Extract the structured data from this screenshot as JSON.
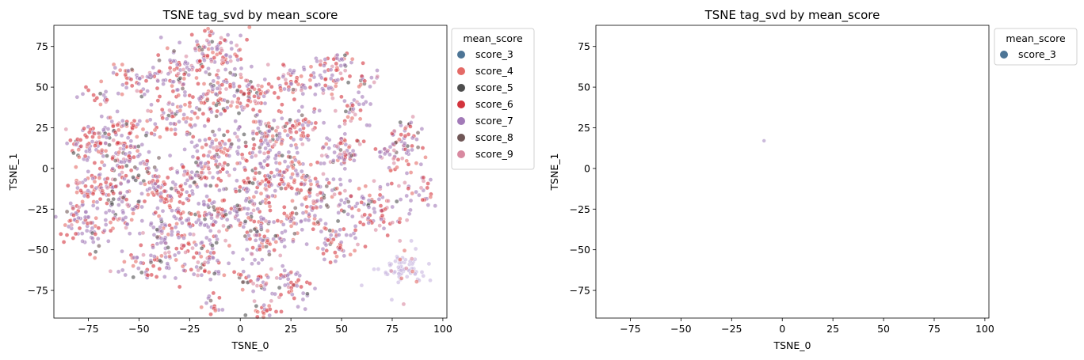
{
  "chart_data": [
    {
      "type": "scatter",
      "title": "TSNE tag_svd by mean_score",
      "xlabel": "TSNE_0",
      "ylabel": "TSNE_1",
      "xlim": [
        -92,
        102
      ],
      "ylim": [
        -92,
        88
      ],
      "xticks": [
        -75,
        -50,
        -25,
        0,
        25,
        50,
        75,
        100
      ],
      "yticks": [
        -75,
        -50,
        -25,
        0,
        25,
        50,
        75
      ],
      "xtick_labels": [
        "−75",
        "−50",
        "−25",
        "0",
        "25",
        "50",
        "75",
        "100"
      ],
      "ytick_labels": [
        "−75",
        "−50",
        "−25",
        "0",
        "25",
        "50",
        "75"
      ],
      "legend": {
        "title": "mean_score",
        "placement": "outside upper right",
        "entries": [
          {
            "label": "score_3",
            "color": "#4d7596"
          },
          {
            "label": "score_4",
            "color": "#e46a66"
          },
          {
            "label": "score_5",
            "color": "#4d4d4d"
          },
          {
            "label": "score_6",
            "color": "#d3343d"
          },
          {
            "label": "score_7",
            "color": "#a27ab8"
          },
          {
            "label": "score_8",
            "color": "#705757"
          },
          {
            "label": "score_9",
            "color": "#d889a0"
          }
        ]
      },
      "series_mix": {
        "score_4": 0.14,
        "score_5": 0.05,
        "score_6": 0.24,
        "score_7": 0.42,
        "score_8": 0.05,
        "score_9": 0.1
      },
      "clusters": [
        {
          "x": -78,
          "y": -35,
          "sx": 6,
          "sy": 8,
          "n": 75
        },
        {
          "x": -72,
          "y": -12,
          "sx": 6,
          "sy": 6,
          "n": 60
        },
        {
          "x": -75,
          "y": 15,
          "sx": 6,
          "sy": 6,
          "n": 60
        },
        {
          "x": -55,
          "y": 5,
          "sx": 8,
          "sy": 9,
          "n": 90
        },
        {
          "x": -58,
          "y": -25,
          "sx": 6,
          "sy": 7,
          "n": 55
        },
        {
          "x": -48,
          "y": -60,
          "sx": 7,
          "sy": 5,
          "n": 45
        },
        {
          "x": -40,
          "y": -10,
          "sx": 8,
          "sy": 8,
          "n": 75
        },
        {
          "x": -35,
          "y": 30,
          "sx": 7,
          "sy": 7,
          "n": 60
        },
        {
          "x": -50,
          "y": 55,
          "sx": 7,
          "sy": 6,
          "n": 50
        },
        {
          "x": -70,
          "y": 45,
          "sx": 4,
          "sy": 3,
          "n": 15
        },
        {
          "x": -28,
          "y": -30,
          "sx": 7,
          "sy": 8,
          "n": 75
        },
        {
          "x": -30,
          "y": 60,
          "sx": 7,
          "sy": 8,
          "n": 70
        },
        {
          "x": -12,
          "y": 72,
          "sx": 7,
          "sy": 7,
          "n": 80
        },
        {
          "x": -15,
          "y": 40,
          "sx": 7,
          "sy": 6,
          "n": 60
        },
        {
          "x": -10,
          "y": 10,
          "sx": 7,
          "sy": 7,
          "n": 75
        },
        {
          "x": -20,
          "y": -5,
          "sx": 6,
          "sy": 6,
          "n": 55
        },
        {
          "x": -8,
          "y": -30,
          "sx": 7,
          "sy": 7,
          "n": 65
        },
        {
          "x": -18,
          "y": -58,
          "sx": 7,
          "sy": 7,
          "n": 65
        },
        {
          "x": -13,
          "y": -82,
          "sx": 3,
          "sy": 4,
          "n": 15
        },
        {
          "x": 5,
          "y": 45,
          "sx": 6,
          "sy": 6,
          "n": 55
        },
        {
          "x": 12,
          "y": 20,
          "sx": 7,
          "sy": 7,
          "n": 65
        },
        {
          "x": 8,
          "y": -10,
          "sx": 6,
          "sy": 6,
          "n": 55
        },
        {
          "x": 12,
          "y": -45,
          "sx": 6,
          "sy": 6,
          "n": 55
        },
        {
          "x": 8,
          "y": -68,
          "sx": 5,
          "sy": 5,
          "n": 35
        },
        {
          "x": 12,
          "y": -88,
          "sx": 4,
          "sy": 2,
          "n": 18
        },
        {
          "x": 25,
          "y": 55,
          "sx": 6,
          "sy": 5,
          "n": 40
        },
        {
          "x": 28,
          "y": 25,
          "sx": 6,
          "sy": 6,
          "n": 55
        },
        {
          "x": 25,
          "y": -5,
          "sx": 6,
          "sy": 6,
          "n": 45
        },
        {
          "x": 30,
          "y": -30,
          "sx": 6,
          "sy": 6,
          "n": 50
        },
        {
          "x": 25,
          "y": -72,
          "sx": 5,
          "sy": 6,
          "n": 45
        },
        {
          "x": 42,
          "y": 55,
          "sx": 6,
          "sy": 6,
          "n": 55
        },
        {
          "x": 40,
          "y": -15,
          "sx": 5,
          "sy": 6,
          "n": 45
        },
        {
          "x": 50,
          "y": 10,
          "sx": 6,
          "sy": 6,
          "n": 65
        },
        {
          "x": 48,
          "y": -45,
          "sx": 6,
          "sy": 6,
          "n": 50
        },
        {
          "x": 60,
          "y": -20,
          "sx": 6,
          "sy": 6,
          "n": 45
        },
        {
          "x": 55,
          "y": 35,
          "sx": 5,
          "sy": 5,
          "n": 30
        },
        {
          "x": 48,
          "y": 67,
          "sx": 4,
          "sy": 3,
          "n": 20
        },
        {
          "x": 63,
          "y": 55,
          "sx": 4,
          "sy": 4,
          "n": 15
        },
        {
          "x": 78,
          "y": 10,
          "sx": 6,
          "sy": 6,
          "n": 55
        },
        {
          "x": 82,
          "y": 25,
          "sx": 3,
          "sy": 3,
          "n": 20
        },
        {
          "x": 70,
          "y": -30,
          "sx": 6,
          "sy": 5,
          "n": 35
        },
        {
          "x": 85,
          "y": -12,
          "sx": 5,
          "sy": 6,
          "n": 25
        },
        {
          "x": 92,
          "y": -20,
          "sx": 2,
          "sy": 2,
          "n": 6
        },
        {
          "x": 5,
          "y": -25,
          "sx": 8,
          "sy": 8,
          "n": 55
        },
        {
          "x": -60,
          "y": 25,
          "sx": 6,
          "sy": 6,
          "n": 40
        },
        {
          "x": -35,
          "y": -45,
          "sx": 6,
          "sy": 6,
          "n": 40
        },
        {
          "x": 18,
          "y": 5,
          "sx": 7,
          "sy": 7,
          "n": 45
        },
        {
          "x": -5,
          "y": 55,
          "sx": 5,
          "sy": 5,
          "n": 30
        }
      ],
      "pale_cluster": {
        "x": 80,
        "y": -62,
        "sx": 6,
        "sy": 6,
        "n": 60,
        "color": "#c8b6e0"
      }
    },
    {
      "type": "scatter",
      "title": "TSNE tag_svd by mean_score",
      "xlabel": "TSNE_0",
      "ylabel": "TSNE_1",
      "xlim": [
        -92,
        102
      ],
      "ylim": [
        -92,
        88
      ],
      "xticks": [
        -75,
        -50,
        -25,
        0,
        25,
        50,
        75,
        100
      ],
      "yticks": [
        -75,
        -50,
        -25,
        0,
        25,
        50,
        75
      ],
      "xtick_labels": [
        "−75",
        "−50",
        "−25",
        "0",
        "25",
        "50",
        "75",
        "100"
      ],
      "ytick_labels": [
        "−75",
        "−50",
        "−25",
        "0",
        "25",
        "50",
        "75"
      ],
      "legend": {
        "title": "mean_score",
        "placement": "outside upper right",
        "entries": [
          {
            "label": "score_3",
            "color": "#4d7596"
          }
        ]
      },
      "points": [
        {
          "series": "score_3",
          "x": -9,
          "y": 17
        }
      ]
    }
  ]
}
